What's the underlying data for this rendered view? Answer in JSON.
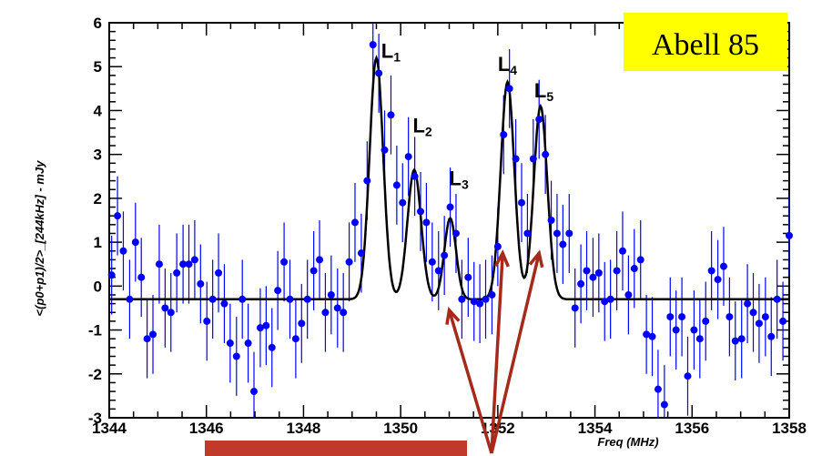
{
  "chart_data": {
    "type": "scatter",
    "title": "Abell 85",
    "xlabel": "Freq (MHz)",
    "ylabel": "<(p0+p1)/2>_[244kHz] - mJy",
    "xlim": [
      1344,
      1358
    ],
    "ylim": [
      -3,
      6
    ],
    "xticks": [
      "1344",
      "1346",
      "1348",
      "1350",
      "1352",
      "1354",
      "1356",
      "1358"
    ],
    "yticks": [
      "-3",
      "-2",
      "-1",
      "0",
      "1",
      "2",
      "3",
      "4",
      "5",
      "6"
    ],
    "grid": false,
    "title_box_color": "#ffff00",
    "point_color": "#0000ff",
    "errorbar_color": "#0000ff",
    "fit_color": "#000000",
    "arrow_color": "#a52a1a",
    "band_color": "#c0392b",
    "baseline": -0.3,
    "fit_peaks": [
      {
        "name": "L1",
        "center": 1349.5,
        "amplitude": 5.5,
        "sigma": 0.14
      },
      {
        "name": "L2",
        "center": 1350.28,
        "amplitude": 2.95,
        "sigma": 0.14
      },
      {
        "name": "L3",
        "center": 1351.02,
        "amplitude": 1.85,
        "sigma": 0.12
      },
      {
        "name": "L4",
        "center": 1352.2,
        "amplitude": 4.95,
        "sigma": 0.14
      },
      {
        "name": "L5",
        "center": 1352.88,
        "amplitude": 4.4,
        "sigma": 0.14
      }
    ],
    "peak_labels": [
      {
        "main": "L",
        "sub": "1",
        "x": 1349.6,
        "y": 5.2
      },
      {
        "main": "L",
        "sub": "2",
        "x": 1350.25,
        "y": 3.5
      },
      {
        "main": "L",
        "sub": "3",
        "x": 1351.0,
        "y": 2.3
      },
      {
        "main": "L",
        "sub": "4",
        "x": 1352.0,
        "y": 4.9
      },
      {
        "main": "L",
        "sub": "5",
        "x": 1352.75,
        "y": 4.3
      }
    ],
    "points": [
      [
        1344.05,
        0.25,
        0.9
      ],
      [
        1344.17,
        1.6,
        0.9
      ],
      [
        1344.29,
        0.8,
        0.9
      ],
      [
        1344.42,
        -0.3,
        0.9
      ],
      [
        1344.54,
        1.0,
        0.9
      ],
      [
        1344.66,
        0.2,
        0.9
      ],
      [
        1344.78,
        -1.2,
        0.9
      ],
      [
        1344.9,
        -1.1,
        0.9
      ],
      [
        1345.03,
        0.5,
        0.9
      ],
      [
        1345.15,
        -0.5,
        0.9
      ],
      [
        1345.27,
        -0.6,
        0.9
      ],
      [
        1345.39,
        0.3,
        0.9
      ],
      [
        1345.52,
        0.5,
        0.9
      ],
      [
        1345.64,
        0.5,
        0.9
      ],
      [
        1345.76,
        0.6,
        0.9
      ],
      [
        1345.88,
        0.05,
        0.9
      ],
      [
        1346.01,
        -0.8,
        0.9
      ],
      [
        1346.13,
        -0.3,
        0.9
      ],
      [
        1346.25,
        0.3,
        0.9
      ],
      [
        1346.37,
        -0.4,
        0.9
      ],
      [
        1346.49,
        -1.3,
        0.9
      ],
      [
        1346.62,
        -1.6,
        0.9
      ],
      [
        1346.74,
        -0.3,
        0.9
      ],
      [
        1346.86,
        -1.3,
        0.9
      ],
      [
        1346.98,
        -2.4,
        0.9
      ],
      [
        1347.11,
        -0.95,
        0.9
      ],
      [
        1347.23,
        -0.9,
        0.9
      ],
      [
        1347.35,
        -1.4,
        0.9
      ],
      [
        1347.47,
        -0.1,
        0.9
      ],
      [
        1347.6,
        0.55,
        0.9
      ],
      [
        1347.72,
        -0.3,
        0.9
      ],
      [
        1347.84,
        -1.2,
        0.9
      ],
      [
        1347.96,
        -0.85,
        0.9
      ],
      [
        1348.08,
        -0.3,
        0.9
      ],
      [
        1348.21,
        0.35,
        0.9
      ],
      [
        1348.33,
        0.6,
        0.9
      ],
      [
        1348.45,
        -0.6,
        0.9
      ],
      [
        1348.57,
        -0.2,
        0.9
      ],
      [
        1348.7,
        -0.5,
        0.9
      ],
      [
        1348.82,
        -0.6,
        0.9
      ],
      [
        1348.94,
        0.55,
        0.9
      ],
      [
        1349.06,
        1.45,
        0.9
      ],
      [
        1349.19,
        0.75,
        0.9
      ],
      [
        1349.31,
        2.4,
        0.9
      ],
      [
        1349.43,
        5.5,
        0.9
      ],
      [
        1349.55,
        4.85,
        0.9
      ],
      [
        1349.67,
        3.1,
        0.9
      ],
      [
        1349.8,
        3.9,
        0.9
      ],
      [
        1349.92,
        2.3,
        0.9
      ],
      [
        1350.04,
        1.9,
        0.9
      ],
      [
        1350.16,
        2.95,
        0.9
      ],
      [
        1350.29,
        2.5,
        0.9
      ],
      [
        1350.41,
        1.7,
        0.9
      ],
      [
        1350.53,
        1.45,
        0.9
      ],
      [
        1350.65,
        0.55,
        0.9
      ],
      [
        1350.78,
        0.35,
        0.9
      ],
      [
        1350.9,
        0.7,
        0.9
      ],
      [
        1351.02,
        1.8,
        0.9
      ],
      [
        1351.14,
        1.2,
        0.9
      ],
      [
        1351.26,
        -0.3,
        0.9
      ],
      [
        1351.39,
        0.2,
        0.9
      ],
      [
        1351.51,
        -0.35,
        0.9
      ],
      [
        1351.63,
        -0.4,
        0.9
      ],
      [
        1351.75,
        -0.3,
        0.9
      ],
      [
        1351.88,
        -0.2,
        0.9
      ],
      [
        1352.0,
        0.9,
        0.9
      ],
      [
        1352.12,
        3.45,
        0.9
      ],
      [
        1352.24,
        4.5,
        0.9
      ],
      [
        1352.37,
        2.9,
        0.9
      ],
      [
        1352.49,
        1.9,
        0.9
      ],
      [
        1352.61,
        1.2,
        0.9
      ],
      [
        1352.73,
        2.9,
        0.9
      ],
      [
        1352.85,
        3.8,
        0.9
      ],
      [
        1352.98,
        3.0,
        0.9
      ],
      [
        1353.1,
        1.5,
        0.9
      ],
      [
        1353.22,
        1.2,
        0.9
      ],
      [
        1353.34,
        0.95,
        0.9
      ],
      [
        1353.47,
        1.2,
        0.9
      ],
      [
        1353.59,
        -0.5,
        0.9
      ],
      [
        1353.71,
        0.05,
        0.9
      ],
      [
        1353.83,
        0.35,
        0.9
      ],
      [
        1353.96,
        0.2,
        0.9
      ],
      [
        1354.08,
        0.3,
        0.9
      ],
      [
        1354.2,
        -0.35,
        0.9
      ],
      [
        1354.32,
        -0.3,
        0.9
      ],
      [
        1354.45,
        0.35,
        0.9
      ],
      [
        1354.57,
        0.8,
        0.9
      ],
      [
        1354.69,
        -0.2,
        0.9
      ],
      [
        1354.81,
        0.4,
        0.9
      ],
      [
        1354.94,
        0.6,
        0.9
      ],
      [
        1355.06,
        -1.1,
        0.9
      ],
      [
        1355.18,
        -1.15,
        0.9
      ],
      [
        1355.3,
        -2.35,
        0.9
      ],
      [
        1355.43,
        -2.7,
        0.9
      ],
      [
        1355.55,
        -0.7,
        0.9
      ],
      [
        1355.67,
        -1.0,
        0.9
      ],
      [
        1355.79,
        -0.7,
        0.9
      ],
      [
        1355.91,
        -2.05,
        0.9
      ],
      [
        1356.04,
        -1.0,
        0.9
      ],
      [
        1356.16,
        -1.2,
        0.9
      ],
      [
        1356.28,
        -0.8,
        0.9
      ],
      [
        1356.4,
        0.35,
        0.9
      ],
      [
        1356.53,
        0.15,
        0.9
      ],
      [
        1356.65,
        0.45,
        0.9
      ],
      [
        1356.77,
        -0.7,
        0.9
      ],
      [
        1356.89,
        -1.25,
        0.9
      ],
      [
        1357.02,
        -1.2,
        0.9
      ],
      [
        1357.14,
        -0.4,
        0.9
      ],
      [
        1357.26,
        -0.6,
        0.9
      ],
      [
        1357.38,
        -0.85,
        0.9
      ],
      [
        1357.51,
        -0.7,
        0.9
      ],
      [
        1357.63,
        -1.15,
        0.9
      ],
      [
        1357.75,
        -0.3,
        0.9
      ],
      [
        1357.87,
        -0.8,
        0.9
      ],
      [
        1358.0,
        1.15,
        0.9
      ]
    ]
  }
}
